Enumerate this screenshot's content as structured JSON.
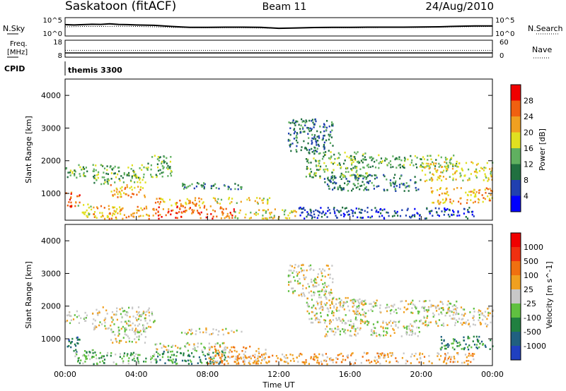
{
  "header": {
    "station": "Saskatoon (fitACF)",
    "beam": "Beam 11",
    "date": "24/Aug/2010"
  },
  "side_labels": {
    "nsky": "N.Sky",
    "nsearch": "N.Search",
    "freq_line1": "Freq.",
    "freq_line2": "[MHz]",
    "nave": "Nave",
    "cpid": "CPID",
    "cpid_value": "themis 3300"
  },
  "chart_data": [
    {
      "type": "line",
      "name_panel": "noise",
      "y_left_ticks": [
        "10^5",
        "10^0"
      ],
      "y_right_ticks": [
        "10^5",
        "10^0"
      ],
      "series": [
        {
          "name": "N.Sky",
          "style": "solid",
          "x": [
            0,
            0.5,
            1,
            1.5,
            2,
            2.5,
            3,
            3.5,
            4,
            5,
            6,
            7,
            8,
            9,
            10,
            11,
            12,
            13,
            14,
            15,
            16,
            17,
            18,
            19,
            20,
            21,
            22,
            23,
            24
          ],
          "y": [
            0.62,
            0.6,
            0.62,
            0.64,
            0.63,
            0.66,
            0.63,
            0.62,
            0.6,
            0.58,
            0.52,
            0.47,
            0.47,
            0.48,
            0.48,
            0.47,
            0.42,
            0.44,
            0.46,
            0.47,
            0.47,
            0.48,
            0.48,
            0.48,
            0.49,
            0.5,
            0.53,
            0.55,
            0.55
          ]
        },
        {
          "name": "N.Search",
          "style": "dotted",
          "x": [
            0,
            1,
            2,
            3,
            4,
            5,
            6,
            8,
            10,
            12,
            14,
            16,
            18,
            20,
            22,
            24
          ],
          "y": [
            0.5,
            0.52,
            0.52,
            0.53,
            0.52,
            0.5,
            0.47,
            0.45,
            0.45,
            0.42,
            0.45,
            0.45,
            0.46,
            0.47,
            0.5,
            0.52
          ]
        }
      ]
    },
    {
      "type": "line",
      "name_panel": "frequency",
      "y_left_ticks": [
        "18",
        "8"
      ],
      "y_right_ticks": [
        "60",
        "0"
      ],
      "series": [
        {
          "name": "Freq.",
          "style": "solid",
          "x": [
            0,
            24
          ],
          "y": [
            10.5,
            10.5
          ]
        },
        {
          "name": "Nave",
          "style": "dotted",
          "x": [
            0,
            24
          ],
          "y": [
            24,
            24
          ]
        }
      ]
    },
    {
      "type": "heatmap",
      "name_panel": "power",
      "ylabel": "Slant Range [km]",
      "y_ticks": [
        "1000",
        "2000",
        "3000",
        "4000"
      ],
      "ylim": [
        180,
        4500
      ],
      "xlim": [
        0,
        24
      ],
      "colorbar_label": "Power [dB]",
      "colorbar_ticks": [
        "4",
        "8",
        "12",
        "16",
        "20",
        "24",
        "28"
      ],
      "colorbar_colors": [
        "#0000ff",
        "#2040b0",
        "#207040",
        "#60b060",
        "#e0e020",
        "#f0a020",
        "#f06010",
        "#f00000"
      ],
      "regions": [
        {
          "x": [
            0,
            1.2
          ],
          "y": [
            1500,
            1900
          ],
          "level": 3
        },
        {
          "x": [
            0,
            0.8
          ],
          "y": [
            600,
            1100
          ],
          "level": 6
        },
        {
          "x": [
            0.5,
            1.5
          ],
          "y": [
            300,
            700
          ],
          "level": 4
        },
        {
          "x": [
            1.5,
            4.5
          ],
          "y": [
            1300,
            1900
          ],
          "level": 3
        },
        {
          "x": [
            2.5,
            4.5
          ],
          "y": [
            900,
            1300
          ],
          "level": 5
        },
        {
          "x": [
            4.5,
            6
          ],
          "y": [
            1500,
            2200
          ],
          "level": 3
        },
        {
          "x": [
            1.5,
            5
          ],
          "y": [
            250,
            650
          ],
          "level": 5
        },
        {
          "x": [
            5,
            9.5
          ],
          "y": [
            250,
            650
          ],
          "level": 6
        },
        {
          "x": [
            5,
            8
          ],
          "y": [
            650,
            900
          ],
          "level": 5
        },
        {
          "x": [
            8,
            11.5
          ],
          "y": [
            700,
            900
          ],
          "level": 4
        },
        {
          "x": [
            9.5,
            13
          ],
          "y": [
            250,
            550
          ],
          "level": 4
        },
        {
          "x": [
            6.5,
            10
          ],
          "y": [
            1150,
            1350
          ],
          "level": 2
        },
        {
          "x": [
            12.5,
            15
          ],
          "y": [
            2300,
            3300
          ],
          "level": 2
        },
        {
          "x": [
            13.5,
            17
          ],
          "y": [
            1500,
            2300
          ],
          "level": 3
        },
        {
          "x": [
            14.5,
            20
          ],
          "y": [
            1100,
            1600
          ],
          "level": 2
        },
        {
          "x": [
            16,
            22
          ],
          "y": [
            1800,
            2200
          ],
          "level": 3
        },
        {
          "x": [
            20,
            24
          ],
          "y": [
            1400,
            2000
          ],
          "level": 4
        },
        {
          "x": [
            20.5,
            24
          ],
          "y": [
            700,
            1200
          ],
          "level": 5
        },
        {
          "x": [
            13,
            23
          ],
          "y": [
            250,
            600
          ],
          "level": 1
        }
      ]
    },
    {
      "type": "heatmap",
      "name_panel": "velocity",
      "ylabel": "Slant Range [km]",
      "xlabel": "Time UT",
      "x_ticks": [
        "00:00",
        "04:00",
        "08:00",
        "12:00",
        "16:00",
        "20:00",
        "00:00"
      ],
      "y_ticks": [
        "1000",
        "2000",
        "3000",
        "4000"
      ],
      "ylim": [
        180,
        4500
      ],
      "xlim": [
        0,
        24
      ],
      "colorbar_label": "Velocity [m s^-1]",
      "colorbar_ticks": [
        "1000",
        "500",
        "100",
        "25",
        "-25",
        "-100",
        "-500",
        "-1000"
      ],
      "colorbar_colors": [
        "#2040c0",
        "#206080",
        "#208040",
        "#60c040",
        "#c8c8c8",
        "#f0a020",
        "#f07010",
        "#f03010",
        "#f00000"
      ],
      "regions": [
        {
          "x": [
            0,
            1.2
          ],
          "y": [
            1500,
            1900
          ],
          "level": 4
        },
        {
          "x": [
            0,
            0.8
          ],
          "y": [
            600,
            1100
          ],
          "level": 1
        },
        {
          "x": [
            0.5,
            2
          ],
          "y": [
            250,
            700
          ],
          "level": 3
        },
        {
          "x": [
            1.5,
            5
          ],
          "y": [
            1300,
            2000
          ],
          "level": 4
        },
        {
          "x": [
            2.5,
            4.5
          ],
          "y": [
            900,
            1300
          ],
          "level": 4
        },
        {
          "x": [
            2,
            5
          ],
          "y": [
            250,
            600
          ],
          "level": 3
        },
        {
          "x": [
            5,
            9
          ],
          "y": [
            250,
            650
          ],
          "level": 2
        },
        {
          "x": [
            5,
            9
          ],
          "y": [
            650,
            900
          ],
          "level": 4
        },
        {
          "x": [
            8,
            11.5
          ],
          "y": [
            250,
            800
          ],
          "level": 5
        },
        {
          "x": [
            9.5,
            13
          ],
          "y": [
            250,
            550
          ],
          "level": 5
        },
        {
          "x": [
            6.5,
            10
          ],
          "y": [
            1150,
            1350
          ],
          "level": 4
        },
        {
          "x": [
            12.5,
            15
          ],
          "y": [
            2300,
            3300
          ],
          "level": 4
        },
        {
          "x": [
            13.5,
            17
          ],
          "y": [
            1500,
            2300
          ],
          "level": 4
        },
        {
          "x": [
            14.5,
            20
          ],
          "y": [
            1100,
            1600
          ],
          "level": 4
        },
        {
          "x": [
            16,
            22
          ],
          "y": [
            1800,
            2200
          ],
          "level": 4
        },
        {
          "x": [
            20,
            24
          ],
          "y": [
            1400,
            2000
          ],
          "level": 4
        },
        {
          "x": [
            21,
            24
          ],
          "y": [
            700,
            1100
          ],
          "level": 2
        },
        {
          "x": [
            13,
            23
          ],
          "y": [
            250,
            600
          ],
          "level": 5
        }
      ]
    }
  ]
}
